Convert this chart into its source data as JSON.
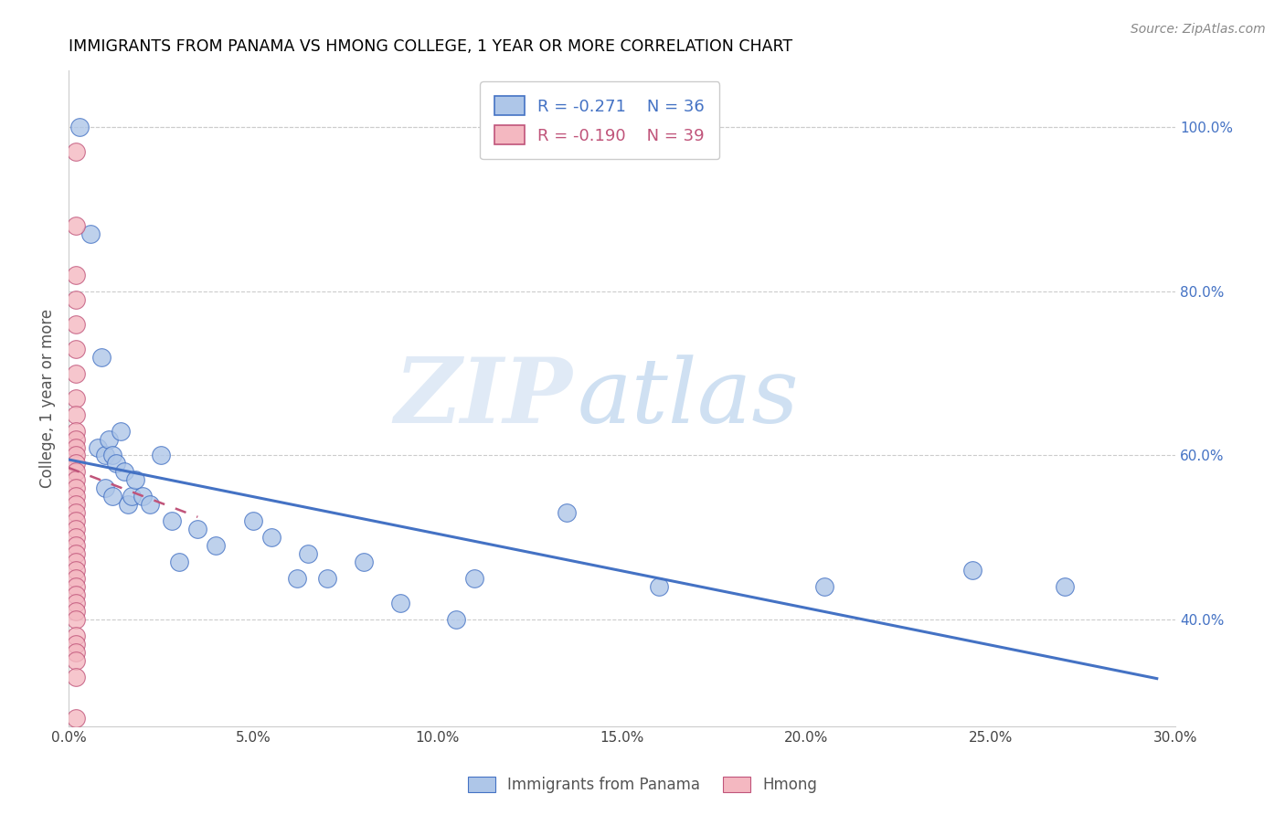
{
  "title": "IMMIGRANTS FROM PANAMA VS HMONG COLLEGE, 1 YEAR OR MORE CORRELATION CHART",
  "source": "Source: ZipAtlas.com",
  "ylabel": "College, 1 year or more",
  "right_ytick_labels": [
    "100.0%",
    "80.0%",
    "60.0%",
    "40.0%"
  ],
  "right_ytick_values": [
    1.0,
    0.8,
    0.6,
    0.4
  ],
  "xlim": [
    0.0,
    0.3
  ],
  "ylim": [
    0.27,
    1.07
  ],
  "xtick_labels": [
    "0.0%",
    "",
    "5.0%",
    "",
    "10.0%",
    "",
    "15.0%",
    "",
    "20.0%",
    "",
    "25.0%",
    "",
    "30.0%"
  ],
  "xtick_values": [
    0.0,
    0.025,
    0.05,
    0.075,
    0.1,
    0.125,
    0.15,
    0.175,
    0.2,
    0.225,
    0.25,
    0.275,
    0.3
  ],
  "legend_entries": [
    {
      "label": "Immigrants from Panama",
      "R": "-0.271",
      "N": "36",
      "color": "#aec6e8"
    },
    {
      "label": "Hmong",
      "R": "-0.190",
      "N": "39",
      "color": "#f4b8c1"
    }
  ],
  "blue_scatter_x": [
    0.003,
    0.006,
    0.008,
    0.009,
    0.01,
    0.01,
    0.011,
    0.012,
    0.012,
    0.013,
    0.014,
    0.015,
    0.016,
    0.017,
    0.018,
    0.02,
    0.022,
    0.025,
    0.028,
    0.03,
    0.035,
    0.04,
    0.05,
    0.055,
    0.062,
    0.065,
    0.07,
    0.08,
    0.09,
    0.105,
    0.11,
    0.135,
    0.16,
    0.205,
    0.245,
    0.27
  ],
  "blue_scatter_y": [
    1.0,
    0.87,
    0.61,
    0.72,
    0.6,
    0.56,
    0.62,
    0.6,
    0.55,
    0.59,
    0.63,
    0.58,
    0.54,
    0.55,
    0.57,
    0.55,
    0.54,
    0.6,
    0.52,
    0.47,
    0.51,
    0.49,
    0.52,
    0.5,
    0.45,
    0.48,
    0.45,
    0.47,
    0.42,
    0.4,
    0.45,
    0.53,
    0.44,
    0.44,
    0.46,
    0.44
  ],
  "pink_scatter_x": [
    0.002,
    0.002,
    0.002,
    0.002,
    0.002,
    0.002,
    0.002,
    0.002,
    0.002,
    0.002,
    0.002,
    0.002,
    0.002,
    0.002,
    0.002,
    0.002,
    0.002,
    0.002,
    0.002,
    0.002,
    0.002,
    0.002,
    0.002,
    0.002,
    0.002,
    0.002,
    0.002,
    0.002,
    0.002,
    0.002,
    0.002,
    0.002,
    0.002,
    0.002,
    0.002,
    0.002,
    0.002,
    0.002,
    0.002
  ],
  "pink_scatter_y": [
    0.97,
    0.88,
    0.82,
    0.79,
    0.76,
    0.73,
    0.7,
    0.67,
    0.65,
    0.63,
    0.62,
    0.61,
    0.6,
    0.59,
    0.58,
    0.57,
    0.56,
    0.55,
    0.54,
    0.53,
    0.52,
    0.51,
    0.5,
    0.49,
    0.48,
    0.47,
    0.46,
    0.45,
    0.44,
    0.43,
    0.42,
    0.41,
    0.4,
    0.38,
    0.37,
    0.36,
    0.35,
    0.33,
    0.28
  ],
  "blue_line": {
    "x0": 0.0,
    "y0": 0.595,
    "x1": 0.295,
    "y1": 0.328
  },
  "pink_line": {
    "x0": 0.0,
    "y0": 0.585,
    "x1": 0.035,
    "y1": 0.525
  },
  "watermark_zip": "ZIP",
  "watermark_atlas": "atlas",
  "background_color": "#ffffff",
  "scatter_color_blue": "#aec6e8",
  "scatter_color_pink": "#f4b8c1",
  "line_color_blue": "#4472c4",
  "line_color_pink": "#c0547a",
  "title_color": "#000000",
  "right_axis_color": "#4472c4",
  "grid_color": "#cccccc",
  "legend_text_color_blue": "#4472c4",
  "legend_text_color_pink": "#c0547a"
}
